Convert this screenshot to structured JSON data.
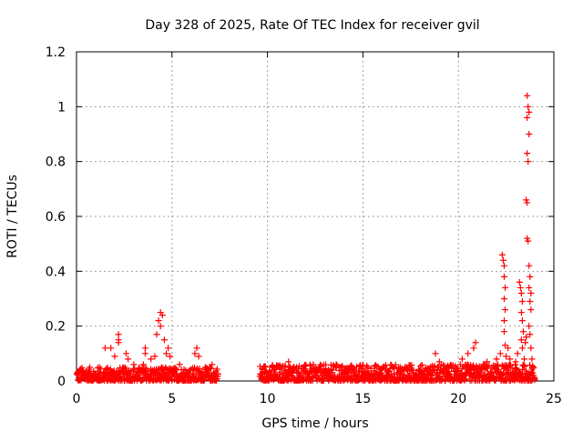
{
  "chart_data": {
    "type": "scatter",
    "title": "Day 328 of 2025, Rate Of TEC Index for receiver gvil",
    "xlabel": "GPS time / hours",
    "ylabel": "ROTI / TECUs",
    "xlim": [
      0,
      25
    ],
    "ylim": [
      0,
      1.2
    ],
    "xticks": [
      0,
      5,
      10,
      15,
      20,
      25
    ],
    "xtick_labels": [
      "0",
      "5",
      "10",
      "15",
      "20",
      "25"
    ],
    "yticks": [
      0,
      0.2,
      0.4,
      0.6,
      0.8,
      1.0,
      1.2
    ],
    "ytick_labels": [
      "0",
      "0.2",
      "0.4",
      "0.6",
      "0.8",
      "1",
      "1.2"
    ],
    "grid": true,
    "marker": "+",
    "color": "#ff0000",
    "series": [
      {
        "name": "ROTI",
        "segments": [
          {
            "x_range": [
              0.0,
              7.4
            ],
            "baseline_max": 0.05
          },
          {
            "x_range": [
              9.6,
              24.0
            ],
            "baseline_max": 0.06
          }
        ],
        "points": [
          [
            0.3,
            0.04
          ],
          [
            0.6,
            0.03
          ],
          [
            1.2,
            0.05
          ],
          [
            1.5,
            0.12
          ],
          [
            1.8,
            0.12
          ],
          [
            2.0,
            0.09
          ],
          [
            2.2,
            0.17
          ],
          [
            2.2,
            0.15
          ],
          [
            2.2,
            0.14
          ],
          [
            2.6,
            0.1
          ],
          [
            2.7,
            0.08
          ],
          [
            3.0,
            0.06
          ],
          [
            3.5,
            0.06
          ],
          [
            3.6,
            0.1
          ],
          [
            3.6,
            0.12
          ],
          [
            3.9,
            0.08
          ],
          [
            4.1,
            0.09
          ],
          [
            4.2,
            0.17
          ],
          [
            4.3,
            0.22
          ],
          [
            4.4,
            0.25
          ],
          [
            4.4,
            0.2
          ],
          [
            4.5,
            0.24
          ],
          [
            4.6,
            0.15
          ],
          [
            4.7,
            0.1
          ],
          [
            4.8,
            0.12
          ],
          [
            4.9,
            0.09
          ],
          [
            5.4,
            0.06
          ],
          [
            6.2,
            0.1
          ],
          [
            6.3,
            0.12
          ],
          [
            6.4,
            0.09
          ],
          [
            7.1,
            0.06
          ],
          [
            11.1,
            0.07
          ],
          [
            13.6,
            0.06
          ],
          [
            18.8,
            0.1
          ],
          [
            19.0,
            0.07
          ],
          [
            20.1,
            0.06
          ],
          [
            20.2,
            0.08
          ],
          [
            20.5,
            0.1
          ],
          [
            20.8,
            0.12
          ],
          [
            20.9,
            0.14
          ],
          [
            21.3,
            0.06
          ],
          [
            21.5,
            0.07
          ],
          [
            22.0,
            0.08
          ],
          [
            22.2,
            0.1
          ],
          [
            22.3,
            0.46
          ],
          [
            22.35,
            0.44
          ],
          [
            22.4,
            0.42
          ],
          [
            22.4,
            0.38
          ],
          [
            22.45,
            0.34
          ],
          [
            22.4,
            0.3
          ],
          [
            22.45,
            0.26
          ],
          [
            22.4,
            0.22
          ],
          [
            22.4,
            0.18
          ],
          [
            22.45,
            0.13
          ],
          [
            22.5,
            0.09
          ],
          [
            22.6,
            0.12
          ],
          [
            22.7,
            0.08
          ],
          [
            23.0,
            0.07
          ],
          [
            23.1,
            0.1
          ],
          [
            23.2,
            0.36
          ],
          [
            23.25,
            0.34
          ],
          [
            23.3,
            0.32
          ],
          [
            23.35,
            0.29
          ],
          [
            23.3,
            0.25
          ],
          [
            23.35,
            0.22
          ],
          [
            23.4,
            0.18
          ],
          [
            23.3,
            0.15
          ],
          [
            23.35,
            0.12
          ],
          [
            23.45,
            0.08
          ],
          [
            23.5,
            0.14
          ],
          [
            23.55,
            0.16
          ],
          [
            23.6,
            1.04
          ],
          [
            23.65,
            1.0
          ],
          [
            23.7,
            0.98
          ],
          [
            23.6,
            0.96
          ],
          [
            23.7,
            0.9
          ],
          [
            23.6,
            0.83
          ],
          [
            23.65,
            0.8
          ],
          [
            23.55,
            0.66
          ],
          [
            23.6,
            0.65
          ],
          [
            23.6,
            0.52
          ],
          [
            23.65,
            0.51
          ],
          [
            23.7,
            0.42
          ],
          [
            23.75,
            0.38
          ],
          [
            23.7,
            0.34
          ],
          [
            23.8,
            0.32
          ],
          [
            23.75,
            0.29
          ],
          [
            23.8,
            0.26
          ],
          [
            23.7,
            0.2
          ],
          [
            23.75,
            0.17
          ],
          [
            23.8,
            0.12
          ],
          [
            23.85,
            0.08
          ],
          [
            23.9,
            0.05
          ]
        ]
      }
    ]
  }
}
